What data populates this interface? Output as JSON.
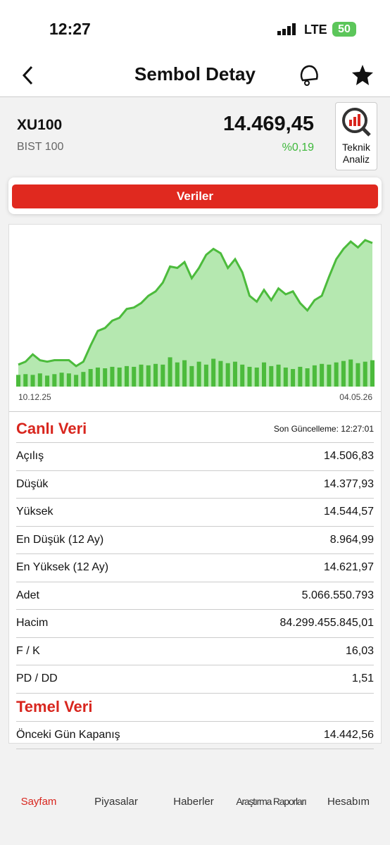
{
  "status": {
    "time": "12:27",
    "network": "LTE",
    "battery": "50"
  },
  "header": {
    "title": "Sembol Detay"
  },
  "symbol": {
    "code": "XU100",
    "name": "BIST 100",
    "price": "14.469,45",
    "change": "%0,19",
    "button": "Teknik Analiz"
  },
  "tab": "Veriler",
  "chart_data": {
    "type": "area",
    "categories": [
      "10.12.25",
      null,
      null,
      null,
      null,
      null,
      null,
      null,
      null,
      null,
      null,
      null,
      null,
      null,
      null,
      null,
      null,
      null,
      null,
      null,
      null,
      null,
      null,
      null,
      null,
      null,
      null,
      null,
      null,
      null,
      null,
      null,
      null,
      null,
      null,
      null,
      null,
      null,
      null,
      null,
      null,
      null,
      null,
      null,
      null,
      null,
      null,
      null,
      null,
      "04.05.26"
    ],
    "series": [
      {
        "color": "#4cbb3c",
        "values": [
          15,
          17,
          22,
          18,
          17,
          18,
          18,
          18,
          14,
          17,
          28,
          38,
          40,
          45,
          47,
          53,
          54,
          57,
          62,
          65,
          71,
          82,
          81,
          85,
          74,
          81,
          90,
          94,
          91,
          81,
          87,
          78,
          62,
          58,
          66,
          59,
          67,
          63,
          65,
          57,
          52,
          59,
          62,
          75,
          87,
          94,
          99,
          95,
          100,
          98
        ]
      },
      {
        "color": "#4cbb3c",
        "axis": "y2",
        "values": [
          16,
          17,
          16,
          18,
          15,
          17,
          19,
          18,
          16,
          20,
          24,
          26,
          25,
          27,
          26,
          28,
          27,
          30,
          29,
          31,
          30,
          40,
          33,
          36,
          28,
          34,
          30,
          38,
          35,
          32,
          34,
          30,
          27,
          26,
          33,
          28,
          30,
          26,
          24,
          27,
          25,
          29,
          31,
          30,
          33,
          35,
          37,
          32,
          34,
          36
        ]
      }
    ],
    "ylim": [
      0,
      100
    ],
    "y2lim": [
      0,
      200
    ]
  },
  "live": {
    "title": "Canlı Veri",
    "updated": "Son Güncelleme: 12:27:01",
    "rows": [
      [
        "Açılış",
        "14.506,83"
      ],
      [
        "Düşük",
        "14.377,93"
      ],
      [
        "Yüksek",
        "14.544,57"
      ],
      [
        "En Düşük (12 Ay)",
        "8.964,99"
      ],
      [
        "En Yüksek (12 Ay)",
        "14.621,97"
      ],
      [
        "Adet",
        "5.066.550.793"
      ],
      [
        "Hacim",
        "84.299.455.845,01"
      ],
      [
        "F / K",
        "16,03"
      ],
      [
        "PD / DD",
        "1,51"
      ]
    ]
  },
  "fundamental": {
    "title": "Temel Veri",
    "rows": [
      [
        "Önceki Gün Kapanış",
        "14.442,56"
      ]
    ]
  },
  "nav": [
    "Sayfam",
    "Piyasalar",
    "Haberler",
    "Araştırma Raporları",
    "Hesabım"
  ]
}
